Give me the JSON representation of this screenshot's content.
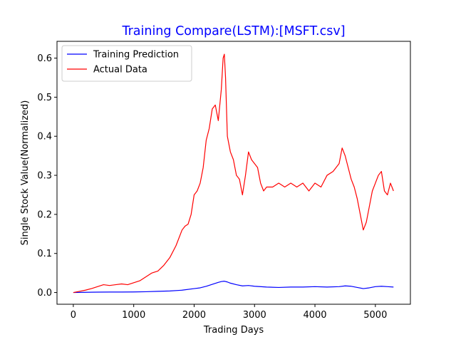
{
  "chart_data": {
    "type": "line",
    "title": "Training Compare(LSTM):[MSFT.csv]",
    "title_color": "#0000ff",
    "xlabel": "Trading Days",
    "ylabel": "Single Stock Value(Normalized)",
    "xlim": [
      -270,
      5580
    ],
    "ylim": [
      -0.03,
      0.643
    ],
    "x_ticks": [
      0,
      1000,
      2000,
      3000,
      4000,
      5000
    ],
    "x_tick_labels": [
      "0",
      "1000",
      "2000",
      "3000",
      "4000",
      "5000"
    ],
    "y_ticks": [
      0.0,
      0.1,
      0.2,
      0.3,
      0.4,
      0.5,
      0.6
    ],
    "y_tick_labels": [
      "0.0",
      "0.1",
      "0.2",
      "0.3",
      "0.4",
      "0.5",
      "0.6"
    ],
    "grid": false,
    "legend_position": "top-left",
    "series": [
      {
        "name": "Training Prediction",
        "color": "#0000ff",
        "x": [
          0,
          200,
          400,
          600,
          800,
          1000,
          1200,
          1400,
          1600,
          1800,
          2000,
          2100,
          2200,
          2300,
          2400,
          2450,
          2500,
          2550,
          2600,
          2700,
          2800,
          2900,
          3000,
          3200,
          3400,
          3600,
          3800,
          4000,
          4200,
          4400,
          4500,
          4600,
          4700,
          4800,
          4900,
          5000,
          5100,
          5200,
          5300
        ],
        "values": [
          0.0,
          0.0005,
          0.001,
          0.0012,
          0.0013,
          0.0015,
          0.002,
          0.003,
          0.004,
          0.006,
          0.01,
          0.012,
          0.016,
          0.021,
          0.026,
          0.028,
          0.029,
          0.027,
          0.024,
          0.02,
          0.017,
          0.018,
          0.016,
          0.014,
          0.013,
          0.014,
          0.014,
          0.015,
          0.014,
          0.015,
          0.017,
          0.016,
          0.013,
          0.01,
          0.012,
          0.015,
          0.016,
          0.015,
          0.014
        ]
      },
      {
        "name": "Actual Data",
        "color": "#ff0000",
        "x": [
          0,
          100,
          200,
          300,
          400,
          500,
          600,
          700,
          800,
          900,
          1000,
          1100,
          1200,
          1300,
          1400,
          1500,
          1600,
          1700,
          1800,
          1850,
          1900,
          1950,
          2000,
          2050,
          2100,
          2150,
          2200,
          2250,
          2300,
          2350,
          2400,
          2450,
          2480,
          2500,
          2520,
          2550,
          2600,
          2650,
          2700,
          2750,
          2800,
          2850,
          2900,
          2950,
          3000,
          3050,
          3100,
          3150,
          3200,
          3300,
          3400,
          3500,
          3600,
          3700,
          3800,
          3900,
          4000,
          4100,
          4200,
          4300,
          4400,
          4450,
          4500,
          4550,
          4600,
          4650,
          4700,
          4750,
          4800,
          4850,
          4900,
          4950,
          5000,
          5050,
          5100,
          5150,
          5200,
          5250,
          5300
        ],
        "values": [
          0.0,
          0.003,
          0.006,
          0.01,
          0.015,
          0.02,
          0.018,
          0.02,
          0.022,
          0.02,
          0.025,
          0.03,
          0.04,
          0.05,
          0.055,
          0.07,
          0.09,
          0.12,
          0.16,
          0.17,
          0.175,
          0.2,
          0.25,
          0.26,
          0.28,
          0.32,
          0.39,
          0.42,
          0.47,
          0.48,
          0.44,
          0.52,
          0.6,
          0.61,
          0.55,
          0.4,
          0.36,
          0.34,
          0.3,
          0.29,
          0.25,
          0.3,
          0.36,
          0.34,
          0.33,
          0.32,
          0.28,
          0.26,
          0.27,
          0.27,
          0.28,
          0.27,
          0.28,
          0.27,
          0.28,
          0.26,
          0.28,
          0.27,
          0.3,
          0.31,
          0.33,
          0.37,
          0.35,
          0.32,
          0.29,
          0.27,
          0.24,
          0.2,
          0.16,
          0.18,
          0.22,
          0.26,
          0.28,
          0.3,
          0.31,
          0.26,
          0.25,
          0.28,
          0.26
        ]
      }
    ]
  }
}
